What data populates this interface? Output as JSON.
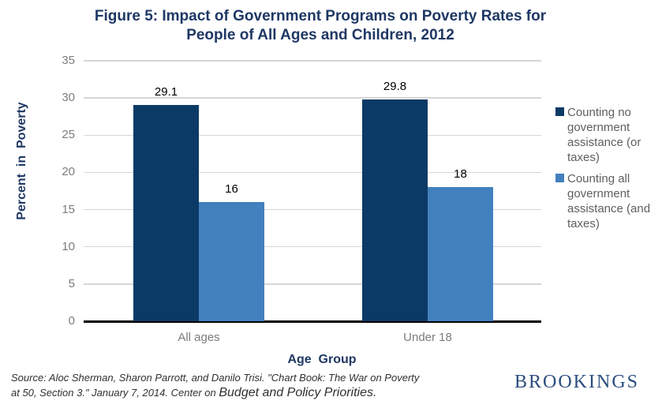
{
  "title": {
    "line1": "Figure 5: Impact of Government Programs on Poverty Rates for",
    "line2": "People of All Ages and Children, 2012"
  },
  "chart_data": {
    "type": "bar",
    "title": "Figure 5: Impact of Government Programs on Poverty Rates for People of All Ages and Children, 2012",
    "categories": [
      "All ages",
      "Under 18"
    ],
    "series": [
      {
        "name": "Counting no government assistance (or taxes)",
        "values": [
          29.1,
          29.8
        ],
        "color": "#0C3A66"
      },
      {
        "name": "Counting all government assistance (and taxes)",
        "values": [
          16,
          18
        ],
        "color": "#4280BE"
      }
    ],
    "data_labels": [
      "29.1",
      "16",
      "29.8",
      "18"
    ],
    "xlabel": "Age  Group",
    "ylabel": "Percent  in  Poverty",
    "ylim": [
      0,
      35
    ],
    "yticks": [
      0,
      5,
      10,
      15,
      20,
      25,
      30,
      35
    ],
    "grid": true,
    "legend_position": "right"
  },
  "footer": {
    "source_line1": "Source: Aloc Sherman, Sharon Parrott, and Danilo Trisi. \"Chart Book: The War on Poverty",
    "source_line2_prefix": "at 50, Section 3.\" January 7, 2014. Center on ",
    "source_org": "Budget and Policy Priorities.",
    "brand": "BROOKINGS"
  },
  "colors": {
    "dark_bar": "#0C3A66",
    "light_bar": "#4280BE",
    "title_navy": "#1F3864",
    "axis_text": "#7C7C7C",
    "legend_text": "#5F5F5F",
    "grid": "#D6D6D6",
    "axis_line": "#000000",
    "value_label": "#000000",
    "source_text": "#303030",
    "brand_navy": "#2C4D7E"
  }
}
